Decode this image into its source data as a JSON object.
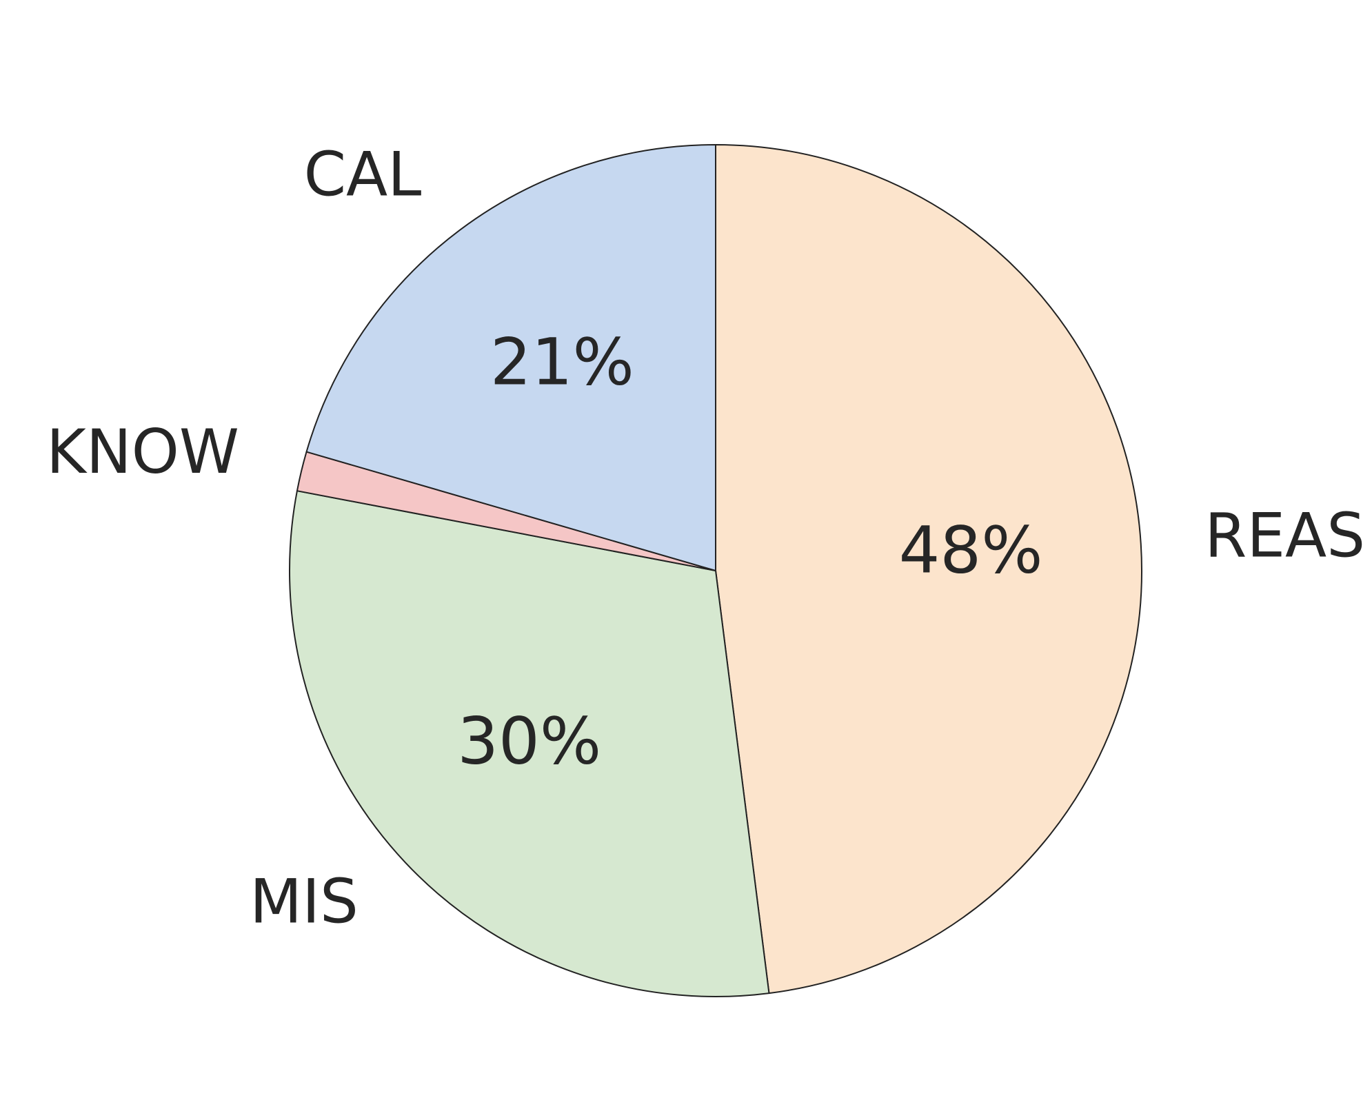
{
  "chart_data": {
    "type": "pie",
    "slices": [
      {
        "label": "REAS",
        "value": 48,
        "pct_text": "48%",
        "color": "#fce4cc"
      },
      {
        "label": "MIS",
        "value": 30,
        "pct_text": "30%",
        "color": "#d6e8d0"
      },
      {
        "label": "KNOW",
        "value": 1.5,
        "pct_text": "",
        "color": "#f5c6c6"
      },
      {
        "label": "CAL",
        "value": 20.5,
        "pct_text": "21%",
        "color": "#c6d8f0"
      }
    ],
    "start": "top",
    "direction": "clockwise",
    "legend": "none"
  }
}
